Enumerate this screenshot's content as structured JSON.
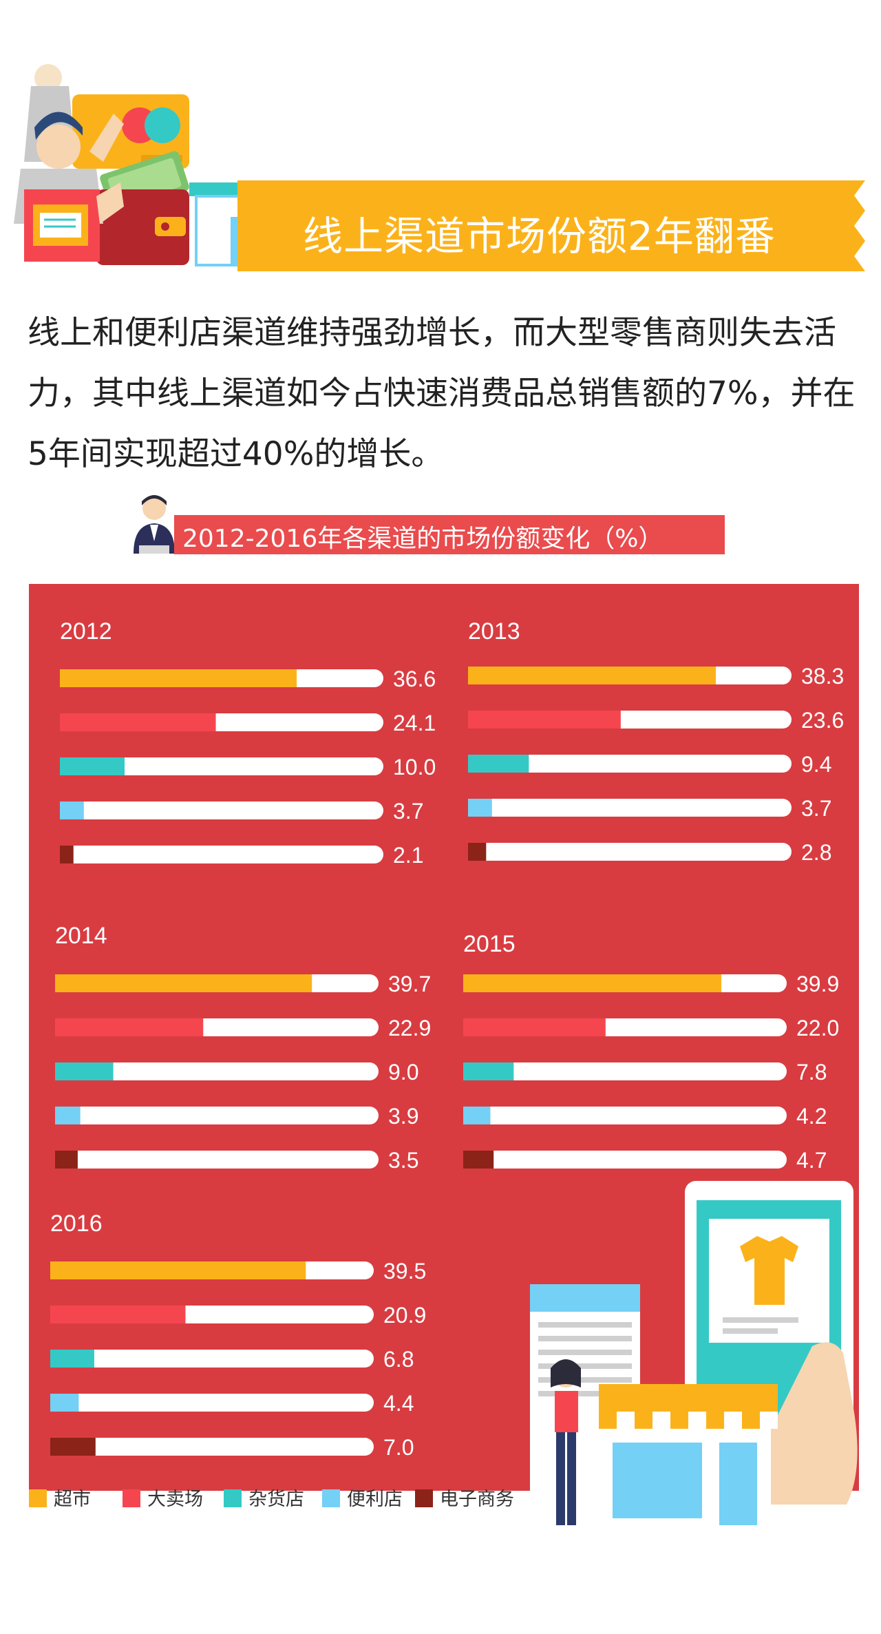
{
  "header": {
    "title": "线上渠道市场份额2年翻番"
  },
  "intro_text": "线上和便利店渠道维持强劲增长，而大型零售商则失去活力，其中线上渠道如今占快速消费品总销售额的7%，并在5年间实现超过40%的增长。",
  "colors": {
    "超市": "#fbb21a",
    "大卖场": "#f5464f",
    "杂货店": "#35c9c6",
    "便利店": "#74d0f5",
    "电子商务": "#8b2318",
    "panel": "#d83c41",
    "title_bar": "#ea4b4d"
  },
  "chart_data": {
    "type": "bar",
    "orientation": "horizontal",
    "title": "2012-2016年各渠道的市场份额变化（%）",
    "series_names": [
      "超市",
      "大卖场",
      "杂货店",
      "便利店",
      "电子商务"
    ],
    "xlim": [
      0,
      50
    ],
    "legend_position": "bottom-left",
    "panels": [
      {
        "year": "2012",
        "values": [
          36.6,
          24.1,
          10.0,
          3.7,
          2.1
        ],
        "labels": [
          "36.6",
          "24.1",
          "10.0",
          "3.7",
          "2.1"
        ]
      },
      {
        "year": "2013",
        "values": [
          38.3,
          23.6,
          9.4,
          3.7,
          2.8
        ],
        "labels": [
          "38.3",
          "23.6",
          "9.4",
          "3.7",
          "2.8"
        ]
      },
      {
        "year": "2014",
        "values": [
          39.7,
          22.9,
          9.0,
          3.9,
          3.5
        ],
        "labels": [
          "39.7",
          "22.9",
          "9.0",
          "3.9",
          "3.5"
        ]
      },
      {
        "year": "2015",
        "values": [
          39.9,
          22.0,
          7.8,
          4.2,
          4.7
        ],
        "labels": [
          "39.9",
          "22.0",
          "7.8",
          "4.2",
          "4.7"
        ]
      },
      {
        "year": "2016",
        "values": [
          39.5,
          20.9,
          6.8,
          4.4,
          7.0
        ],
        "labels": [
          "39.5",
          "20.9",
          "6.8",
          "4.4",
          "7.0"
        ]
      }
    ]
  }
}
